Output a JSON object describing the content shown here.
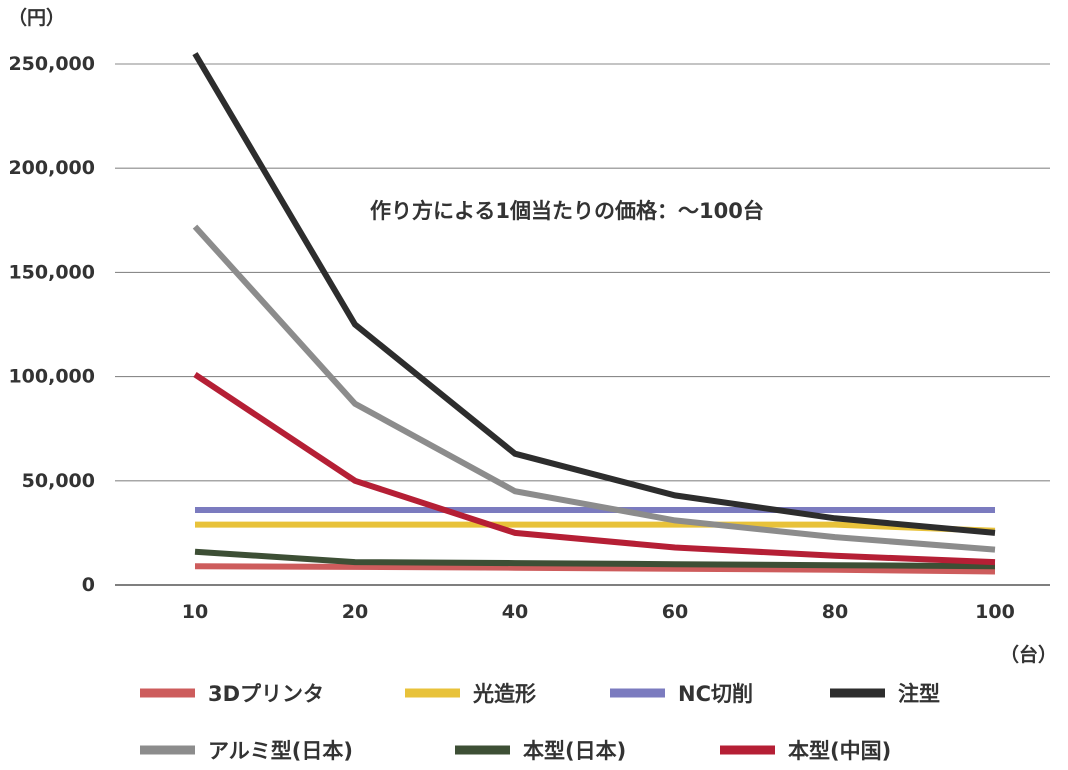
{
  "chart_data": {
    "type": "line",
    "title": "作り方による1個当たりの価格：～100台",
    "y_unit": "（円）",
    "x_unit": "（台）",
    "categories": [
      "10",
      "20",
      "40",
      "60",
      "80",
      "100"
    ],
    "y_ticks": [
      0,
      50000,
      100000,
      150000,
      200000,
      250000
    ],
    "y_tick_labels": [
      "0",
      "50,000",
      "100,000",
      "150,000",
      "200,000",
      "250,000"
    ],
    "ylim": [
      0,
      250000
    ],
    "grid": true,
    "legend_position": "bottom",
    "series": [
      {
        "name": "3Dプリンタ",
        "color": "#cd5c5c",
        "values": [
          9000,
          8700,
          8300,
          7800,
          7300,
          6500
        ]
      },
      {
        "name": "光造形",
        "color": "#e8c23a",
        "values": [
          29000,
          29000,
          29000,
          29000,
          29000,
          26000
        ]
      },
      {
        "name": "NC切削",
        "color": "#7b7bbf",
        "values": [
          36000,
          36000,
          36000,
          36000,
          36000,
          36000
        ]
      },
      {
        "name": "注型",
        "color": "#2d2d2d",
        "values": [
          255000,
          125000,
          63000,
          43000,
          32000,
          25000
        ]
      },
      {
        "name": "アルミ型(日本)",
        "color": "#8c8c8c",
        "values": [
          172000,
          87000,
          45000,
          31000,
          23000,
          17000
        ]
      },
      {
        "name": "本型(日本)",
        "color": "#3d4f35",
        "values": [
          16000,
          11000,
          10500,
          10000,
          9500,
          9000
        ]
      },
      {
        "name": "本型(中国)",
        "color": "#b51f35",
        "values": [
          101000,
          50000,
          25000,
          18000,
          14000,
          11000
        ]
      }
    ]
  }
}
